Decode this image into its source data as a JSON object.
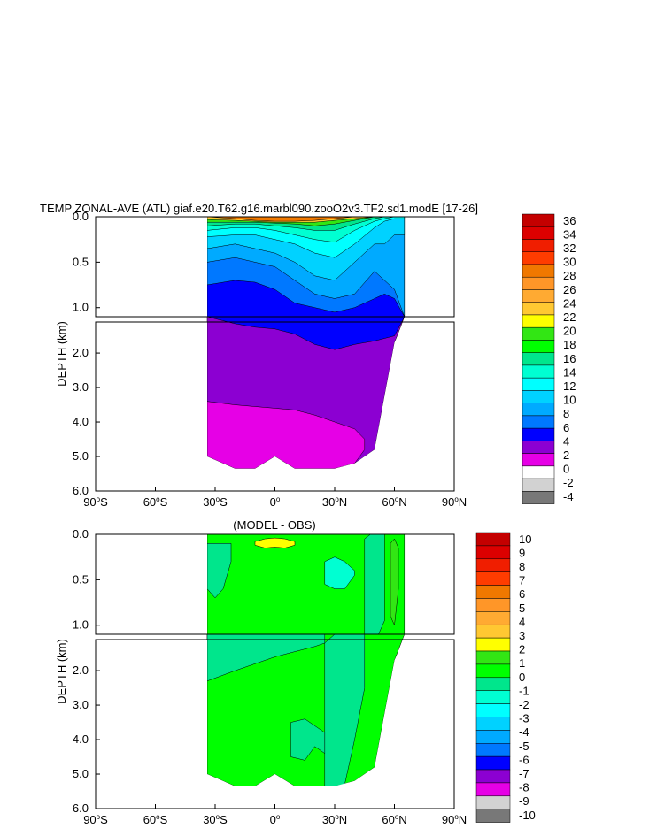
{
  "chart_data": [
    {
      "type": "heatmap",
      "title": "TEMP ZONAL-AVE (ATL) giaf.e20.T62.g16.marbl090.zooO2v3.TF2.sd1.modE [17-26]",
      "subtitle": "",
      "xlabel": "",
      "ylabel": "DEPTH (km)",
      "x_ticks": [
        "90°S",
        "60°S",
        "30°S",
        "0°",
        "30°N",
        "60°N",
        "90°N"
      ],
      "y_ticks_upper": [
        "0.0",
        "0.5",
        "1.0"
      ],
      "y_ticks_lower": [
        "2.0",
        "3.0",
        "4.0",
        "5.0",
        "6.0"
      ],
      "xlim": [
        -90,
        90
      ],
      "ylim": [
        0,
        6
      ],
      "grid": false,
      "colorbar_levels": [
        "36",
        "34",
        "32",
        "30",
        "28",
        "26",
        "24",
        "22",
        "20",
        "18",
        "16",
        "14",
        "12",
        "10",
        "8",
        "6",
        "4",
        "2",
        "0",
        "-2",
        "-4"
      ],
      "colorbar_colors": [
        "#c40000",
        "#dc0000",
        "#f01e00",
        "#ff3c00",
        "#f07800",
        "#ff9628",
        "#ffaa32",
        "#ffc832",
        "#ffff00",
        "#32e614",
        "#00ff00",
        "#00e68c",
        "#00ffd2",
        "#00ffff",
        "#00d2ff",
        "#00aaff",
        "#0078ff",
        "#0000ff",
        "#8c00d2",
        "#e600e6",
        "#ffffff",
        "#d2d2d2",
        "#787878"
      ]
    },
    {
      "type": "heatmap",
      "title": "(MODEL - OBS)",
      "subtitle": "",
      "xlabel": "",
      "ylabel": "DEPTH (km)",
      "x_ticks": [
        "90°S",
        "60°S",
        "30°S",
        "0°",
        "30°N",
        "60°N",
        "90°N"
      ],
      "y_ticks_upper": [
        "0.0",
        "0.5",
        "1.0"
      ],
      "y_ticks_lower": [
        "2.0",
        "3.0",
        "4.0",
        "5.0",
        "6.0"
      ],
      "xlim": [
        -90,
        90
      ],
      "ylim": [
        0,
        6
      ],
      "grid": false,
      "colorbar_levels": [
        "10",
        "9",
        "8",
        "7",
        "6",
        "5",
        "4",
        "3",
        "2",
        "1",
        "0",
        "-1",
        "-2",
        "-3",
        "-4",
        "-5",
        "-6",
        "-7",
        "-8",
        "-9",
        "-10"
      ],
      "colorbar_colors": [
        "#c40000",
        "#dc0000",
        "#f01e00",
        "#ff3c00",
        "#f07800",
        "#ff9628",
        "#ffaa32",
        "#ffc832",
        "#ffff00",
        "#32e614",
        "#00ff00",
        "#00e68c",
        "#00ffd2",
        "#00ffff",
        "#00d2ff",
        "#00aaff",
        "#0078ff",
        "#0000ff",
        "#8c00d2",
        "#e600e6",
        "#d2d2d2",
        "#787878"
      ]
    }
  ]
}
